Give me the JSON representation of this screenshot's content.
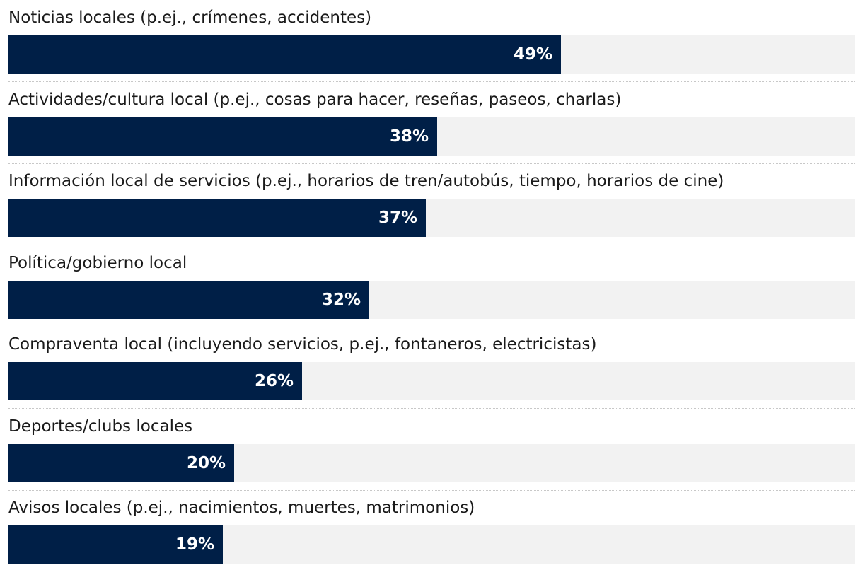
{
  "chart_data": {
    "type": "bar",
    "orientation": "horizontal",
    "title": "",
    "xlabel": "",
    "ylabel": "",
    "xlim": [
      0,
      75
    ],
    "categories": [
      "Noticias locales (p.ej., crímenes, accidentes)",
      "Actividades/cultura local (p.ej., cosas para hacer, reseñas, paseos, charlas)",
      "Información local de servicios (p.ej., horarios de tren/autobús, tiempo, horarios de cine)",
      "Política/gobierno local",
      "Compraventa local (incluyendo servicios, p.ej., fontaneros, electricistas)",
      "Deportes/clubs locales",
      "Avisos locales (p.ej., nacimientos, muertes, matrimonios)"
    ],
    "values": [
      49,
      38,
      37,
      32,
      26,
      20,
      19
    ],
    "value_labels": [
      "49%",
      "38%",
      "37%",
      "32%",
      "26%",
      "20%",
      "19%"
    ],
    "colors": {
      "bar": "#001f47",
      "track": "#f2f2f2",
      "label_text": "#1a1a1a",
      "value_text": "#ffffff"
    }
  }
}
